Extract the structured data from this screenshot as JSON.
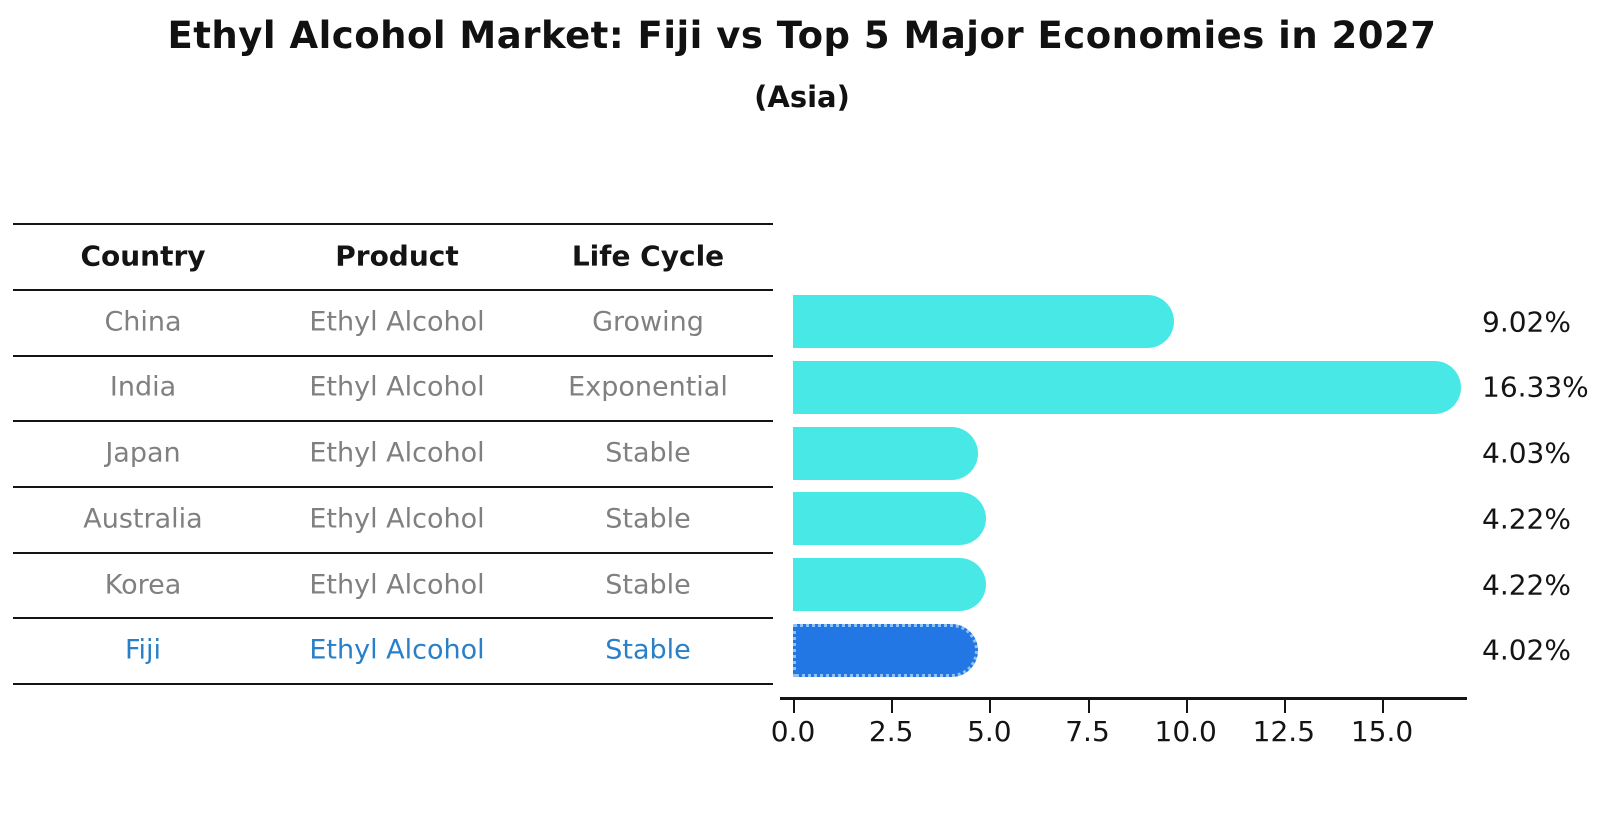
{
  "title": "Ethyl Alcohol Market: Fiji vs Top 5 Major Economies in 2027",
  "subtitle": "(Asia)",
  "table": {
    "columns": [
      "Country",
      "Product",
      "Life Cycle"
    ],
    "rows": [
      {
        "country": "China",
        "product": "Ethyl Alcohol",
        "life_cycle": "Growing",
        "highlight": false
      },
      {
        "country": "India",
        "product": "Ethyl Alcohol",
        "life_cycle": "Exponential",
        "highlight": false
      },
      {
        "country": "Japan",
        "product": "Ethyl Alcohol",
        "life_cycle": "Stable",
        "highlight": false
      },
      {
        "country": "Australia",
        "product": "Ethyl Alcohol",
        "life_cycle": "Stable",
        "highlight": false
      },
      {
        "country": "Korea",
        "product": "Ethyl Alcohol",
        "life_cycle": "Stable",
        "highlight": false
      },
      {
        "country": "Fiji",
        "product": "Ethyl Alcohol",
        "life_cycle": "Stable",
        "highlight": true
      }
    ]
  },
  "chart_data": {
    "type": "bar",
    "orientation": "horizontal",
    "title": "Ethyl Alcohol Market: Fiji vs Top 5 Major Economies in 2027",
    "subtitle": "(Asia)",
    "categories": [
      "China",
      "India",
      "Japan",
      "Australia",
      "Korea",
      "Fiji"
    ],
    "values": [
      9.02,
      16.33,
      4.03,
      4.22,
      4.22,
      4.02
    ],
    "value_labels": [
      "9.02%",
      "16.33%",
      "4.03%",
      "4.22%",
      "4.22%",
      "4.02%"
    ],
    "x_ticks": [
      0.0,
      2.5,
      5.0,
      7.5,
      10.0,
      12.5,
      15.0
    ],
    "x_tick_labels": [
      "0.0",
      "2.5",
      "5.0",
      "7.5",
      "10.0",
      "12.5",
      "15.0"
    ],
    "xlim": [
      0,
      17.15
    ],
    "grid": false,
    "legend": "none",
    "highlight_index": 5,
    "bar_color": "#48e8e6",
    "highlight_bar_color": "#2277e4",
    "highlight_text_color": "#2980c8",
    "text_color": "#808080"
  }
}
